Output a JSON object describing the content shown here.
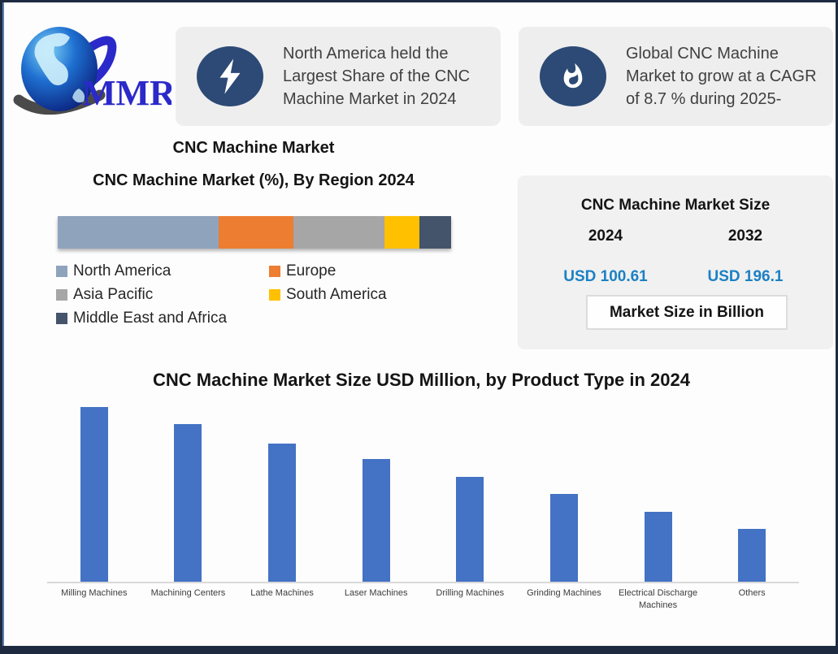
{
  "page": {
    "background": "#fdfdfd",
    "frame_color": "#1e2a3f",
    "left_accent_color": "#5d7fad"
  },
  "logo": {
    "text": "MMR",
    "text_color": "#2b29c9",
    "globe_colors": [
      "#7fd4f7",
      "#1e6fd0",
      "#0a1f7a"
    ],
    "swoosh_color": "#555555"
  },
  "callouts": [
    {
      "icon": "lightning-icon",
      "icon_bg": "#2c4a75",
      "lines": [
        "North America held the",
        "Largest Share of the CNC",
        "Machine Market in 2024"
      ]
    },
    {
      "icon": "flame-icon",
      "icon_bg": "#2c4a75",
      "lines": [
        "Global CNC Machine",
        "Market to grow at a CAGR",
        "of 8.7 % during 2025-"
      ]
    }
  ],
  "region_section": {
    "title": "CNC Machine Market",
    "subtitle": "CNC Machine Market (%), By Region 2024"
  },
  "market_size_panel": {
    "title": "CNC Machine Market Size",
    "columns": [
      {
        "year": "2024",
        "value": "USD 100.61"
      },
      {
        "year": "2032",
        "value": "USD 196.1"
      }
    ],
    "value_color": "#1b80c4",
    "button_label": "Market Size in Billion"
  },
  "chart_data": [
    {
      "type": "bar",
      "subtype": "horizontal-stacked-100pct",
      "title": "CNC Machine Market (%), By Region 2024",
      "categories": [
        "North America",
        "Europe",
        "Asia Pacific",
        "South America",
        "Middle East and Africa"
      ],
      "values": [
        41,
        19,
        23,
        9,
        8
      ],
      "unit": "percent",
      "colors": [
        "#8fa3bd",
        "#ed7d31",
        "#a6a6a6",
        "#ffc000",
        "#44546a"
      ],
      "legend_position": "bottom-left",
      "axes_shown": false
    },
    {
      "type": "bar",
      "title": "CNC Machine Market Size USD Million, by Product Type in 2024",
      "categories": [
        "Milling Machines",
        "Machining Centers",
        "Lathe Machines",
        "Laser Machines",
        "Drilling Machines",
        "Grinding Machines",
        "Electrical Discharge Machines",
        "Others"
      ],
      "values": [
        100,
        90,
        79,
        70,
        60,
        50,
        40,
        30
      ],
      "value_note": "relative bar heights estimated from pixels; no y-axis labels shown",
      "xlabel": "",
      "ylabel": "",
      "ylim": [
        0,
        110
      ],
      "bar_color": "#4472c4",
      "axis_line_color": "#d9d9d9",
      "grid": false,
      "legend": false
    }
  ]
}
